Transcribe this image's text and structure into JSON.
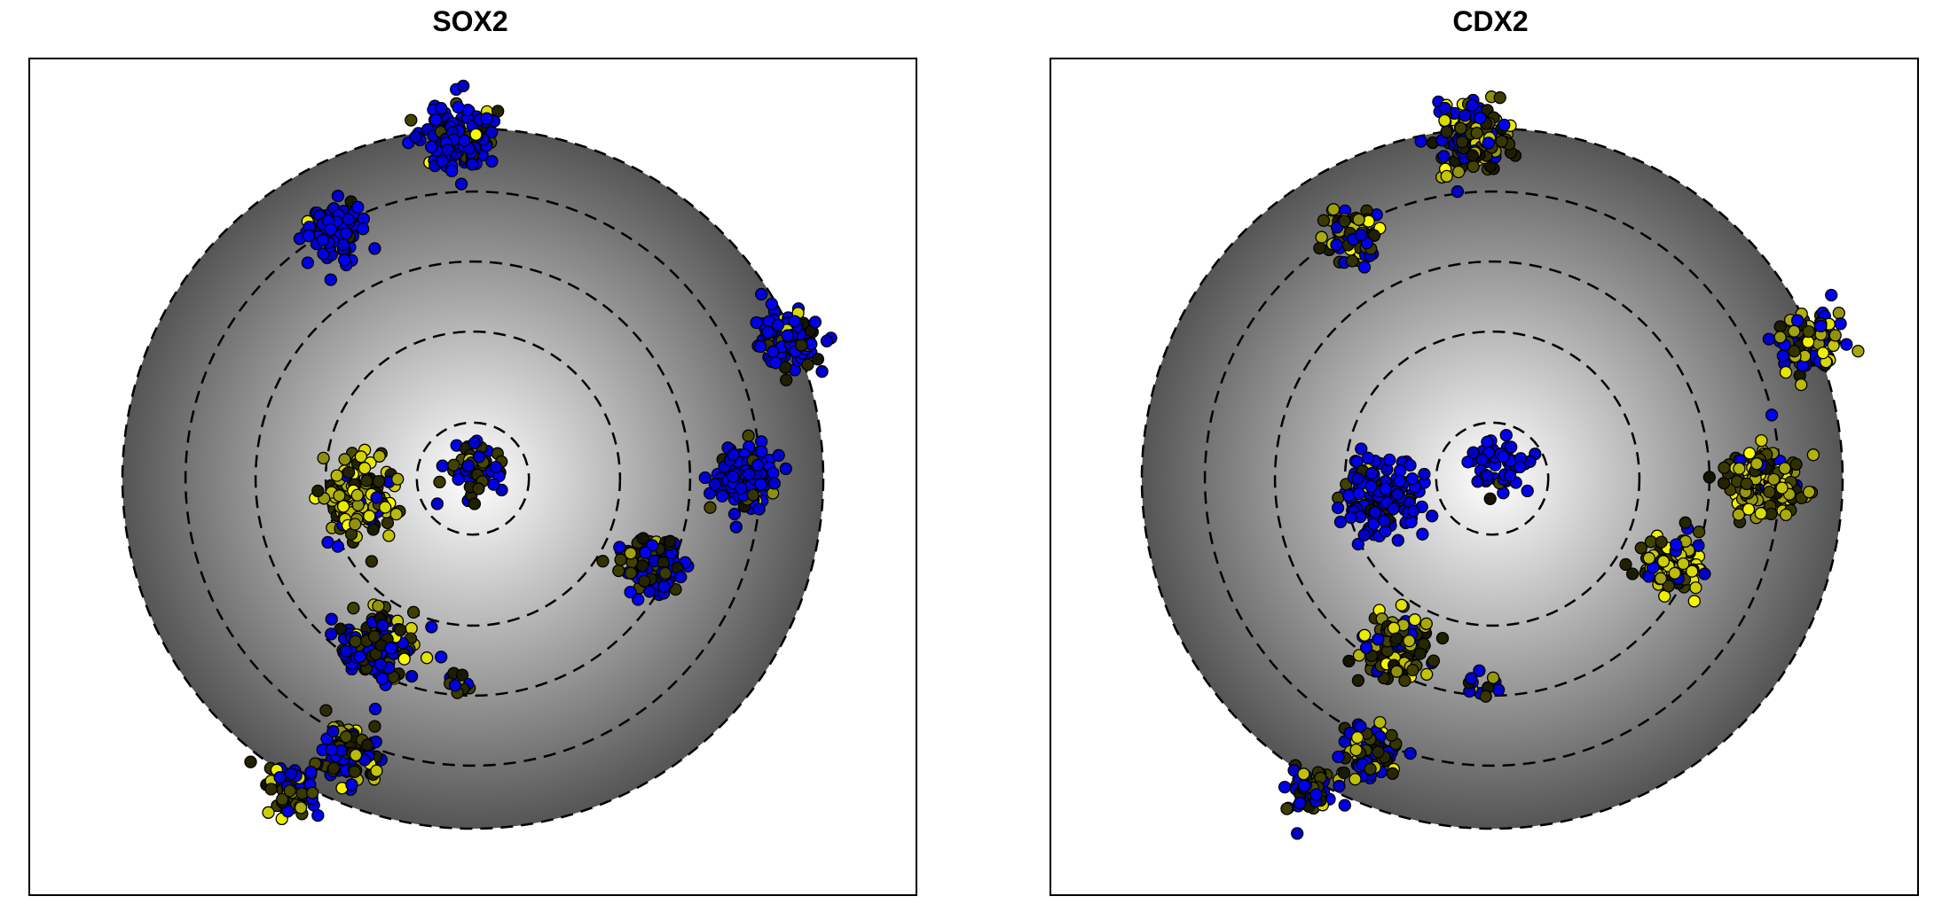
{
  "chart_data": [
    {
      "type": "scatter",
      "title": "SOX2",
      "xlabel": "",
      "ylabel": "",
      "grid": false,
      "background": "radial-gradient-disc",
      "colors": {
        "low": "#0000ff",
        "mid": "#000000",
        "high": "#ffff00",
        "ring": "#000000",
        "disc_center": "#ffffff",
        "disc_edge": "#555555"
      },
      "clusters": [
        {
          "x": -0.05,
          "y": 0.97,
          "spread": 0.09,
          "n": 140,
          "mix": [
            0.85,
            0.12,
            0.03
          ]
        },
        {
          "x": -0.4,
          "y": 0.7,
          "spread": 0.08,
          "n": 80,
          "mix": [
            0.9,
            0.08,
            0.02
          ]
        },
        {
          "x": 0.9,
          "y": 0.4,
          "spread": 0.08,
          "n": 110,
          "mix": [
            0.7,
            0.25,
            0.05
          ]
        },
        {
          "x": 0.78,
          "y": 0.0,
          "spread": 0.09,
          "n": 140,
          "mix": [
            0.8,
            0.18,
            0.02
          ]
        },
        {
          "x": 0.51,
          "y": -0.25,
          "spread": 0.08,
          "n": 100,
          "mix": [
            0.6,
            0.38,
            0.02
          ]
        },
        {
          "x": 0.02,
          "y": 0.03,
          "spread": 0.07,
          "n": 50,
          "mix": [
            0.55,
            0.4,
            0.05
          ]
        },
        {
          "x": -0.32,
          "y": -0.05,
          "spread": 0.1,
          "n": 160,
          "mix": [
            0.05,
            0.35,
            0.6
          ]
        },
        {
          "x": -0.28,
          "y": -0.48,
          "spread": 0.09,
          "n": 140,
          "mix": [
            0.45,
            0.45,
            0.1
          ]
        },
        {
          "x": -0.35,
          "y": -0.78,
          "spread": 0.08,
          "n": 80,
          "mix": [
            0.4,
            0.4,
            0.2
          ]
        },
        {
          "x": -0.52,
          "y": -0.9,
          "spread": 0.07,
          "n": 60,
          "mix": [
            0.45,
            0.35,
            0.2
          ]
        },
        {
          "x": -0.04,
          "y": -0.58,
          "spread": 0.05,
          "n": 12,
          "mix": [
            0.5,
            0.2,
            0.3
          ]
        }
      ]
    },
    {
      "type": "scatter",
      "title": "CDX2",
      "xlabel": "",
      "ylabel": "",
      "grid": false,
      "background": "radial-gradient-disc",
      "colors": {
        "low": "#0000ff",
        "mid": "#000000",
        "high": "#ffff00",
        "ring": "#000000",
        "disc_center": "#ffffff",
        "disc_edge": "#555555"
      },
      "clusters": [
        {
          "x": -0.05,
          "y": 0.97,
          "spread": 0.09,
          "n": 140,
          "mix": [
            0.35,
            0.4,
            0.25
          ]
        },
        {
          "x": -0.4,
          "y": 0.7,
          "spread": 0.08,
          "n": 80,
          "mix": [
            0.25,
            0.45,
            0.3
          ]
        },
        {
          "x": 0.9,
          "y": 0.4,
          "spread": 0.08,
          "n": 110,
          "mix": [
            0.45,
            0.35,
            0.2
          ]
        },
        {
          "x": 0.78,
          "y": 0.0,
          "spread": 0.09,
          "n": 140,
          "mix": [
            0.05,
            0.5,
            0.45
          ]
        },
        {
          "x": 0.51,
          "y": -0.25,
          "spread": 0.08,
          "n": 100,
          "mix": [
            0.15,
            0.4,
            0.45
          ]
        },
        {
          "x": 0.02,
          "y": 0.03,
          "spread": 0.07,
          "n": 50,
          "mix": [
            0.9,
            0.08,
            0.02
          ]
        },
        {
          "x": -0.32,
          "y": -0.05,
          "spread": 0.1,
          "n": 160,
          "mix": [
            0.9,
            0.08,
            0.02
          ]
        },
        {
          "x": -0.28,
          "y": -0.48,
          "spread": 0.09,
          "n": 140,
          "mix": [
            0.3,
            0.45,
            0.25
          ]
        },
        {
          "x": -0.35,
          "y": -0.78,
          "spread": 0.08,
          "n": 80,
          "mix": [
            0.35,
            0.45,
            0.2
          ]
        },
        {
          "x": -0.52,
          "y": -0.9,
          "spread": 0.07,
          "n": 60,
          "mix": [
            0.4,
            0.5,
            0.1
          ]
        },
        {
          "x": -0.04,
          "y": -0.58,
          "spread": 0.05,
          "n": 12,
          "mix": [
            0.5,
            0.3,
            0.2
          ]
        }
      ]
    }
  ],
  "rings": [
    0.16,
    0.42,
    0.62,
    0.82,
    1.0
  ]
}
